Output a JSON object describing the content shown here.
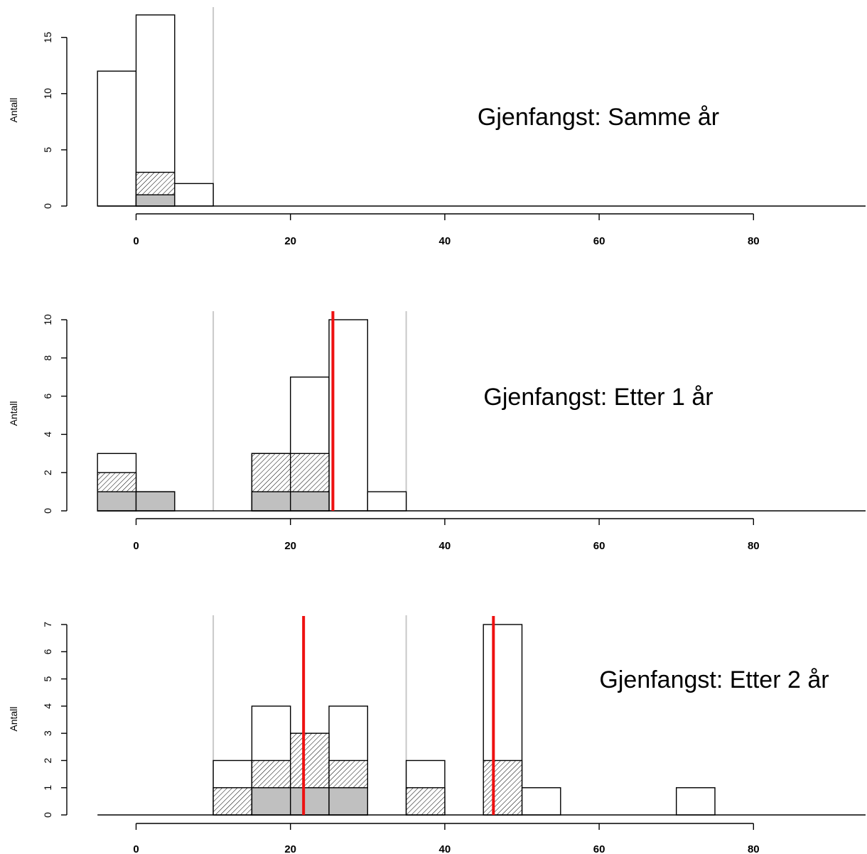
{
  "chart_data": [
    {
      "type": "bar",
      "title": "Gjenfangst: Samme år",
      "ylabel": "Antall",
      "xlabel": "",
      "xlim": [
        -5,
        95
      ],
      "ylim": [
        0,
        17
      ],
      "xticks": [
        0,
        20,
        40,
        60,
        80
      ],
      "yticks": [
        0,
        5,
        10,
        15
      ],
      "bin_width": 5,
      "series": [
        {
          "name": "total",
          "x": [
            -5,
            0,
            5
          ],
          "values": [
            12,
            17,
            2
          ],
          "fill": "white"
        },
        {
          "name": "hatched",
          "x": [
            0
          ],
          "values": [
            3
          ],
          "fill": "hatch"
        },
        {
          "name": "grey",
          "x": [
            0
          ],
          "values": [
            1
          ],
          "fill": "#c0c0c0"
        }
      ],
      "vlines_grey": [
        10
      ],
      "vlines_red": []
    },
    {
      "type": "bar",
      "title": "Gjenfangst: Etter 1 år",
      "ylabel": "Antall",
      "xlabel": "",
      "xlim": [
        -5,
        95
      ],
      "ylim": [
        0,
        10
      ],
      "xticks": [
        0,
        20,
        40,
        60,
        80
      ],
      "yticks": [
        0,
        2,
        4,
        6,
        8,
        10
      ],
      "bin_width": 5,
      "series": [
        {
          "name": "total",
          "x": [
            -5,
            0,
            15,
            20,
            25,
            30
          ],
          "values": [
            3,
            1,
            3,
            7,
            10,
            1
          ],
          "fill": "white"
        },
        {
          "name": "hatched",
          "x": [
            -5,
            15,
            20
          ],
          "values": [
            2,
            3,
            3
          ],
          "fill": "hatch"
        },
        {
          "name": "grey",
          "x": [
            -5,
            0,
            15,
            20
          ],
          "values": [
            1,
            1,
            1,
            1
          ],
          "fill": "#c0c0c0"
        }
      ],
      "vlines_grey": [
        10,
        35
      ],
      "vlines_red": [
        25.5
      ]
    },
    {
      "type": "bar",
      "title": "Gjenfangst: Etter 2 år",
      "ylabel": "Antall",
      "xlabel": "",
      "xlim": [
        -5,
        95
      ],
      "ylim": [
        0,
        7
      ],
      "xticks": [
        0,
        20,
        40,
        60,
        80
      ],
      "yticks": [
        0,
        1,
        2,
        3,
        4,
        5,
        6,
        7
      ],
      "bin_width": 5,
      "series": [
        {
          "name": "total",
          "x": [
            10,
            15,
            20,
            25,
            35,
            45,
            50,
            70
          ],
          "values": [
            2,
            4,
            3,
            4,
            2,
            7,
            1,
            1
          ],
          "fill": "white"
        },
        {
          "name": "hatched",
          "x": [
            10,
            15,
            20,
            25,
            35,
            45
          ],
          "values": [
            1,
            2,
            3,
            2,
            1,
            2
          ],
          "fill": "hatch"
        },
        {
          "name": "grey",
          "x": [
            15,
            20,
            25
          ],
          "values": [
            1,
            1,
            1
          ],
          "fill": "#c0c0c0"
        }
      ],
      "vlines_grey": [
        10,
        35
      ],
      "vlines_red": [
        21.7,
        46.3
      ]
    }
  ]
}
